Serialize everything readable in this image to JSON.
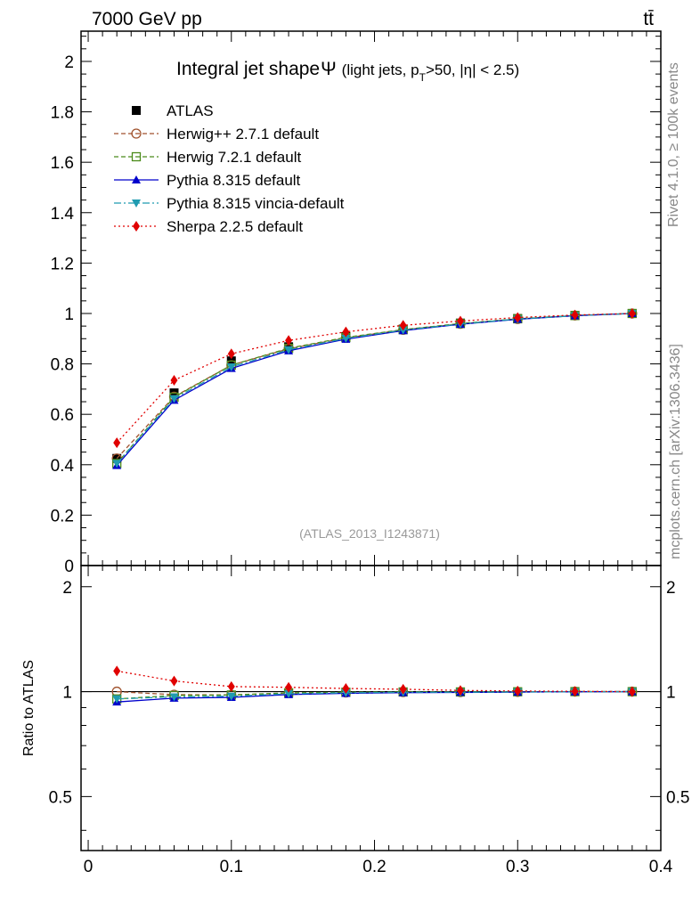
{
  "header": {
    "energy_label": "7000 GeV pp",
    "process_label": "tt̄",
    "rivet_label": "Rivet 4.1.0, ≥ 100k events",
    "mcplots_label": "mcplots.cern.ch [arXiv:1306.3436]",
    "analysis_label": "(ATLAS_2013_I1243871)"
  },
  "colors": {
    "data": "#000000",
    "herwigpp": "#a0522d",
    "herwig7": "#4a8a1a",
    "pythia": "#0000cc",
    "vincia": "#1f9bb0",
    "sherpa": "#e00000",
    "side_text": "#888888"
  },
  "chart_data": [
    {
      "type": "line",
      "panel": "main",
      "title_main": "Integral jet shape",
      "title_symbol": "Ψ",
      "title_sub": "(light jets, p",
      "title_sub_subscript": "T",
      "title_sub_rest": ">50, |η| < 2.5)",
      "xlim": [
        -0.005,
        0.4
      ],
      "ylim": [
        0,
        2.12
      ],
      "yticks": [
        0,
        0.2,
        0.4,
        0.6,
        0.8,
        1,
        1.2,
        1.4,
        1.6,
        1.8,
        2
      ],
      "ytick_labels": [
        "0",
        "0.2",
        "0.4",
        "0.6",
        "0.8",
        "1",
        "1.2",
        "1.4",
        "1.6",
        "1.8",
        "2"
      ],
      "x": [
        0.02,
        0.06,
        0.1,
        0.14,
        0.18,
        0.22,
        0.26,
        0.3,
        0.34,
        0.38
      ],
      "legend_position": "top-left",
      "series": [
        {
          "name": "ATLAS",
          "key": "data",
          "marker": "square-filled",
          "line": "none",
          "values": [
            0.425,
            0.685,
            0.812,
            0.868,
            0.908,
            0.938,
            0.962,
            0.98,
            0.992,
            1.0
          ]
        },
        {
          "name": "Herwig++ 2.7.1 default",
          "key": "herwigpp",
          "marker": "circle-open",
          "line": "dashed",
          "values": [
            0.425,
            0.67,
            0.795,
            0.86,
            0.903,
            0.935,
            0.959,
            0.978,
            0.992,
            1.0
          ]
        },
        {
          "name": "Herwig 7.2.1 default",
          "key": "herwig7",
          "marker": "square-open",
          "line": "dashed",
          "values": [
            0.405,
            0.668,
            0.795,
            0.862,
            0.905,
            0.936,
            0.96,
            0.979,
            0.992,
            1.0
          ]
        },
        {
          "name": "Pythia 8.315 default",
          "key": "pythia",
          "marker": "triangle-up",
          "line": "solid",
          "values": [
            0.397,
            0.656,
            0.782,
            0.852,
            0.898,
            0.932,
            0.957,
            0.977,
            0.991,
            1.0
          ]
        },
        {
          "name": "Pythia 8.315 vincia-default",
          "key": "vincia",
          "marker": "triangle-down",
          "line": "dashdot",
          "values": [
            0.405,
            0.662,
            0.788,
            0.856,
            0.901,
            0.934,
            0.958,
            0.978,
            0.991,
            1.0
          ]
        },
        {
          "name": "Sherpa 2.2.5 default",
          "key": "sherpa",
          "marker": "diamond",
          "line": "dotted",
          "values": [
            0.487,
            0.735,
            0.84,
            0.893,
            0.927,
            0.953,
            0.97,
            0.984,
            0.994,
            1.0
          ]
        }
      ]
    },
    {
      "type": "line",
      "panel": "ratio",
      "ylabel": "Ratio to ATLAS",
      "xlabel": "",
      "xlim": [
        -0.005,
        0.4
      ],
      "ylim": [
        0.35,
        2.3
      ],
      "scale": "log",
      "yticks": [
        0.5,
        1,
        2
      ],
      "ytick_labels": [
        "0.5",
        "1",
        "2"
      ],
      "xticks": [
        0,
        0.1,
        0.2,
        0.3,
        0.4
      ],
      "xtick_labels": [
        "0",
        "0.1",
        "0.2",
        "0.3",
        "0.4"
      ],
      "reference_line": 1,
      "x": [
        0.02,
        0.06,
        0.1,
        0.14,
        0.18,
        0.22,
        0.26,
        0.3,
        0.34,
        0.38
      ],
      "series": [
        {
          "name": "Herwig++ 2.7.1 default",
          "key": "herwigpp",
          "marker": "circle-open",
          "line": "dashed",
          "values": [
            1.0,
            0.98,
            0.978,
            0.99,
            0.994,
            0.997,
            0.997,
            0.998,
            1.0,
            1.0
          ]
        },
        {
          "name": "Herwig 7.2.1 default",
          "key": "herwig7",
          "marker": "square-open",
          "line": "dashed",
          "values": [
            0.953,
            0.975,
            0.978,
            0.992,
            0.996,
            0.998,
            0.998,
            0.999,
            1.0,
            1.0
          ]
        },
        {
          "name": "Pythia 8.315 default",
          "key": "pythia",
          "marker": "triangle-up",
          "line": "solid",
          "values": [
            0.934,
            0.958,
            0.963,
            0.981,
            0.989,
            0.993,
            0.995,
            0.997,
            0.999,
            1.0
          ]
        },
        {
          "name": "Pythia 8.315 vincia-default",
          "key": "vincia",
          "marker": "triangle-down",
          "line": "dashdot",
          "values": [
            0.953,
            0.966,
            0.97,
            0.986,
            0.992,
            0.996,
            0.996,
            0.998,
            0.999,
            1.0
          ]
        },
        {
          "name": "Sherpa 2.2.5 default",
          "key": "sherpa",
          "marker": "diamond",
          "line": "dotted",
          "values": [
            1.146,
            1.073,
            1.034,
            1.029,
            1.021,
            1.016,
            1.008,
            1.004,
            1.002,
            1.0
          ]
        }
      ]
    }
  ]
}
